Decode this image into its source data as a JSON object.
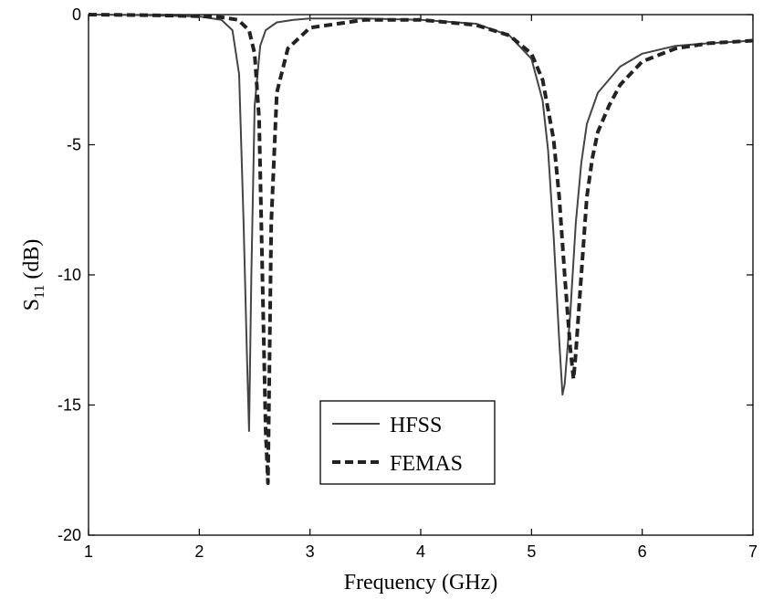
{
  "chart_data": {
    "type": "line",
    "xlabel": "Frequency (GHz)",
    "ylabel_main": "S",
    "ylabel_sub": "11",
    "ylabel_unit": " (dB)",
    "xlim": [
      1,
      7
    ],
    "ylim": [
      -20,
      0
    ],
    "xticks": [
      1,
      2,
      3,
      4,
      5,
      6,
      7
    ],
    "yticks": [
      0,
      -5,
      -10,
      -15,
      -20
    ],
    "grid": false,
    "legend_position": "lower-center",
    "series": [
      {
        "name": "HFSS",
        "style": "solid",
        "color": "#444444",
        "x": [
          1.0,
          1.5,
          2.0,
          2.2,
          2.3,
          2.36,
          2.4,
          2.43,
          2.45,
          2.47,
          2.5,
          2.55,
          2.6,
          2.7,
          2.85,
          3.0,
          3.5,
          4.0,
          4.5,
          4.8,
          5.0,
          5.1,
          5.15,
          5.2,
          5.25,
          5.28,
          5.3,
          5.35,
          5.4,
          5.45,
          5.5,
          5.6,
          5.8,
          6.0,
          6.3,
          6.6,
          7.0
        ],
        "y": [
          0.0,
          -0.02,
          -0.07,
          -0.2,
          -0.6,
          -2.3,
          -8.0,
          -13.0,
          -16.0,
          -10.0,
          -3.5,
          -1.2,
          -0.6,
          -0.3,
          -0.2,
          -0.15,
          -0.15,
          -0.2,
          -0.35,
          -0.8,
          -1.7,
          -3.3,
          -5.2,
          -8.5,
          -12.5,
          -14.6,
          -14.2,
          -11.5,
          -8.0,
          -5.7,
          -4.2,
          -3.0,
          -2.0,
          -1.5,
          -1.2,
          -1.1,
          -1.0
        ]
      },
      {
        "name": "FEMAS",
        "style": "dashed",
        "color": "#222222",
        "x": [
          1.0,
          1.5,
          2.0,
          2.2,
          2.35,
          2.45,
          2.5,
          2.54,
          2.57,
          2.6,
          2.62,
          2.65,
          2.7,
          2.8,
          3.0,
          3.5,
          4.0,
          4.5,
          4.8,
          5.0,
          5.1,
          5.2,
          5.25,
          5.3,
          5.35,
          5.38,
          5.4,
          5.45,
          5.5,
          5.55,
          5.6,
          5.7,
          5.8,
          6.0,
          6.3,
          6.6,
          7.0
        ],
        "y": [
          0.0,
          -0.02,
          -0.06,
          -0.1,
          -0.2,
          -0.6,
          -1.5,
          -4.0,
          -10.0,
          -16.0,
          -18.0,
          -8.0,
          -3.0,
          -1.3,
          -0.5,
          -0.2,
          -0.2,
          -0.4,
          -0.8,
          -1.5,
          -2.5,
          -4.8,
          -7.0,
          -10.0,
          -12.8,
          -14.0,
          -13.0,
          -10.0,
          -7.0,
          -5.5,
          -4.5,
          -3.5,
          -2.7,
          -1.8,
          -1.3,
          -1.1,
          -1.0
        ]
      }
    ]
  }
}
